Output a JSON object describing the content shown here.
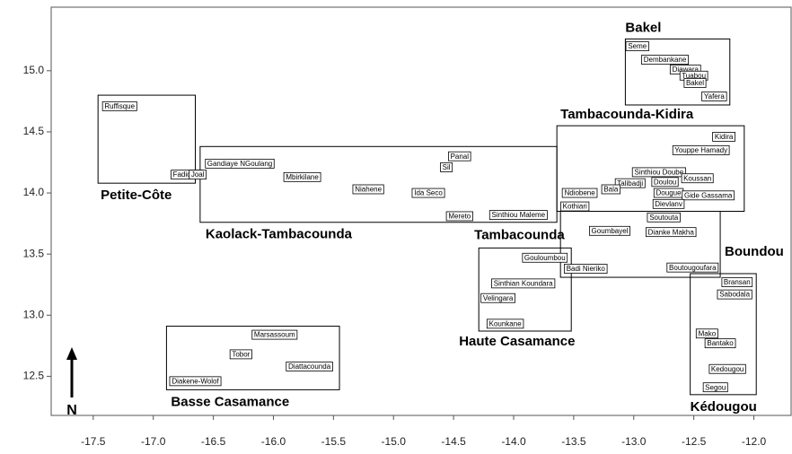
{
  "chart_data": {
    "type": "labeled-map",
    "north_label": "N",
    "xlim": [
      -17.85,
      -11.69
    ],
    "ylim": [
      12.18,
      15.52
    ],
    "xticks": [
      -17.5,
      {
        "value": -17,
        "label": "-17.0"
      },
      -16.5,
      {
        "value": -16,
        "label": "-16.0"
      },
      -15.5,
      {
        "value": -15,
        "label": "-15.0"
      },
      -14.5,
      {
        "value": -14,
        "label": "-14.0"
      },
      -13.5,
      {
        "value": -13,
        "label": "-13.0"
      },
      -12.5,
      {
        "value": -12,
        "label": "-12.0"
      }
    ],
    "yticks": [
      12.5,
      {
        "value": 13,
        "label": "13.0"
      },
      13.5,
      {
        "value": 14,
        "label": "14.0"
      },
      14.5,
      {
        "value": 15,
        "label": "15.0"
      }
    ],
    "places": {
      "names": [
        "Seme",
        "Dembankane",
        "Diawara",
        "Tuabou",
        "Bakel",
        "Yafera",
        "Ruffisque",
        "Fadiouth",
        "Joal",
        "Kidira",
        "Youppe Hamady",
        "Panal",
        "Sil",
        "Gandiaye NGoulang",
        "Mbirkilane",
        "Sinthiou Doube",
        "Koussan",
        "Doulou",
        "Talibadji",
        "Bala",
        "Niahene",
        "Ida Seco",
        "Ndiobene",
        "Dougue",
        "Gide Gassama",
        "Kothiari",
        "Dievlanv",
        "Mereto",
        "Sinthiou Maleme",
        "Soutouta",
        "Goumbayel",
        "Dianke Makha",
        "Gouloumbou",
        "Badi Nieriko",
        "Boutougoufara",
        "Bransan",
        "Sinthian Koundara",
        "Sabodala",
        "Velingara",
        "Kounkane",
        "Marsassoum",
        "Mako",
        "Bantako",
        "Tobor",
        "Diattacounda",
        "Kedougou",
        "Diakene-Wolof",
        "Segou"
      ],
      "lon": [
        -12.97,
        -12.74,
        -12.57,
        -12.5,
        -12.49,
        -12.33,
        -17.28,
        -16.72,
        -16.63,
        -12.25,
        -12.44,
        -14.45,
        -14.56,
        -16.28,
        -15.76,
        -12.79,
        -12.47,
        -12.74,
        -13.03,
        -13.19,
        -15.21,
        -14.71,
        -13.45,
        -12.71,
        -12.38,
        -13.49,
        -12.71,
        -14.45,
        -13.96,
        -12.75,
        -13.2,
        -12.69,
        -13.74,
        -13.4,
        -12.51,
        -12.14,
        -13.92,
        -12.16,
        -14.13,
        -14.07,
        -15.99,
        -12.39,
        -12.28,
        -16.27,
        -15.7,
        -12.22,
        -16.65,
        -12.32
      ],
      "lat": [
        15.2,
        15.09,
        15.01,
        14.96,
        14.9,
        14.79,
        14.71,
        14.15,
        14.15,
        14.46,
        14.35,
        14.3,
        14.21,
        14.24,
        14.13,
        14.17,
        14.12,
        14.09,
        14.08,
        14.03,
        14.03,
        14.0,
        14.0,
        14.0,
        13.98,
        13.89,
        13.91,
        13.81,
        13.82,
        13.8,
        13.69,
        13.68,
        13.47,
        13.38,
        13.39,
        13.27,
        13.26,
        13.17,
        13.14,
        12.93,
        12.84,
        12.85,
        12.77,
        12.68,
        12.58,
        12.56,
        12.46,
        12.41
      ]
    },
    "regions": [
      {
        "name": "Bakel",
        "lon": [
          -13.07,
          -12.2
        ],
        "lat": [
          14.72,
          15.26
        ]
      },
      {
        "name": "Petite-Côte",
        "lon": [
          -17.46,
          -16.65
        ],
        "lat": [
          14.08,
          14.8
        ]
      },
      {
        "name": "Tambacounda-Kidira",
        "lon": [
          -13.64,
          -12.08
        ],
        "lat": [
          13.85,
          14.55
        ]
      },
      {
        "name": "Kaolack-Tambacounda",
        "lon": [
          -16.61,
          -13.64
        ],
        "lat": [
          13.76,
          14.38
        ]
      },
      {
        "name": "Tambacounda",
        "lon": [
          -13.61,
          -12.28
        ],
        "lat": [
          13.31,
          13.85
        ]
      },
      {
        "name": "Boundou"
      },
      {
        "name": "Haute Casamance",
        "lon": [
          -14.29,
          -13.52
        ],
        "lat": [
          12.87,
          13.55
        ]
      },
      {
        "name": "Basse Casamance",
        "lon": [
          -16.89,
          -15.45
        ],
        "lat": [
          12.39,
          12.91
        ]
      },
      {
        "name": "Kédougou",
        "lon": [
          -12.53,
          -11.98
        ],
        "lat": [
          12.35,
          13.34
        ]
      }
    ]
  }
}
